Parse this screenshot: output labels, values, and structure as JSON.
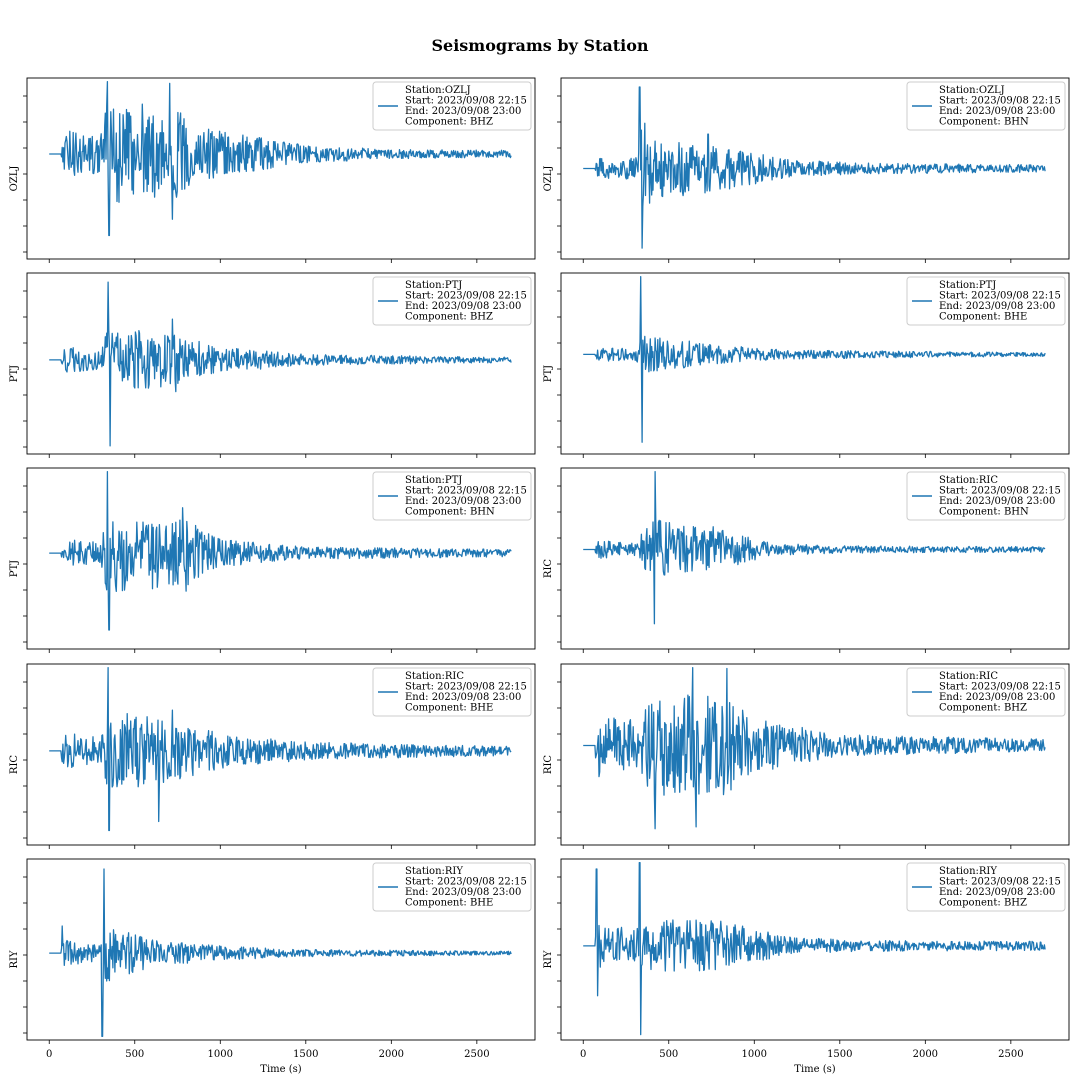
{
  "title": "Seismograms by Station",
  "colors": {
    "trace": "#1f77b4",
    "axes": "#000000",
    "legend_border": "#cccccc"
  },
  "chart_data": {
    "type": "line",
    "title": "Seismograms by Station",
    "xlabel": "Time (s)",
    "xlim": [
      -130,
      2840
    ],
    "xticks": [
      0,
      500,
      1000,
      1500,
      2000,
      2500
    ],
    "grid": false,
    "legend_placement": "upper right",
    "rows": 5,
    "cols": 2,
    "panels": [
      {
        "station": "OZLJ",
        "ylabel": "OZLJ",
        "legend_lines": [
          "Station:OZLJ",
          "Start: 2023/09/08 22:15",
          "End: 2023/09/08 23:00",
          "Component: BHZ"
        ],
        "baseline": 0.42,
        "start_x": 70,
        "end_x": 2700,
        "peaks": [
          {
            "t": 340,
            "amp": 0.88
          },
          {
            "t": 350,
            "amp": -0.9
          },
          {
            "t": 705,
            "amp": 0.78
          },
          {
            "t": 720,
            "amp": -0.72
          },
          {
            "t": 545,
            "amp": 0.55
          }
        ],
        "envelope": [
          [
            0,
            0
          ],
          [
            70,
            0.05
          ],
          [
            90,
            0.3
          ],
          [
            300,
            0.2
          ],
          [
            340,
            0.6
          ],
          [
            500,
            0.45
          ],
          [
            720,
            0.5
          ],
          [
            1000,
            0.25
          ],
          [
            1500,
            0.1
          ],
          [
            2000,
            0.05
          ],
          [
            2700,
            0.04
          ]
        ]
      },
      {
        "station": "OZLJ",
        "ylabel": "OZLJ",
        "legend_lines": [
          "Station:OZLJ",
          "Start: 2023/09/08 22:15",
          "End: 2023/09/08 23:00",
          "Component: BHN"
        ],
        "baseline": 0.5,
        "start_x": 70,
        "end_x": 2700,
        "peaks": [
          {
            "t": 330,
            "amp": 0.9
          },
          {
            "t": 345,
            "amp": -0.88
          },
          {
            "t": 360,
            "amp": 0.5
          },
          {
            "t": 730,
            "amp": 0.38
          }
        ],
        "envelope": [
          [
            0,
            0
          ],
          [
            70,
            0.03
          ],
          [
            90,
            0.12
          ],
          [
            300,
            0.12
          ],
          [
            340,
            0.45
          ],
          [
            500,
            0.32
          ],
          [
            800,
            0.25
          ],
          [
            1200,
            0.1
          ],
          [
            1600,
            0.06
          ],
          [
            2700,
            0.04
          ]
        ]
      },
      {
        "station": "PTJ",
        "ylabel": "PTJ",
        "legend_lines": [
          "Station:PTJ",
          "Start: 2023/09/08 22:15",
          "End: 2023/09/08 23:00",
          "Component: BHZ"
        ],
        "baseline": 0.48,
        "start_x": 70,
        "end_x": 2700,
        "peaks": [
          {
            "t": 345,
            "amp": 0.86
          },
          {
            "t": 355,
            "amp": -0.95
          },
          {
            "t": 720,
            "amp": 0.45
          },
          {
            "t": 740,
            "amp": -0.35
          }
        ],
        "envelope": [
          [
            0,
            0
          ],
          [
            70,
            0.04
          ],
          [
            90,
            0.15
          ],
          [
            300,
            0.1
          ],
          [
            345,
            0.35
          ],
          [
            700,
            0.3
          ],
          [
            1000,
            0.14
          ],
          [
            1500,
            0.06
          ],
          [
            2700,
            0.03
          ]
        ]
      },
      {
        "station": "PTJ",
        "ylabel": "PTJ",
        "legend_lines": [
          "Station:PTJ",
          "Start: 2023/09/08 22:15",
          "End: 2023/09/08 23:00",
          "Component: BHE"
        ],
        "baseline": 0.45,
        "start_x": 70,
        "end_x": 2700,
        "peaks": [
          {
            "t": 335,
            "amp": 0.92
          },
          {
            "t": 345,
            "amp": -0.97
          },
          {
            "t": 360,
            "amp": 0.2
          }
        ],
        "envelope": [
          [
            0,
            0
          ],
          [
            70,
            0.02
          ],
          [
            90,
            0.08
          ],
          [
            300,
            0.06
          ],
          [
            340,
            0.2
          ],
          [
            500,
            0.18
          ],
          [
            800,
            0.1
          ],
          [
            1200,
            0.05
          ],
          [
            2700,
            0.02
          ]
        ]
      },
      {
        "station": "PTJ",
        "ylabel": "PTJ",
        "legend_lines": [
          "Station:PTJ",
          "Start: 2023/09/08 22:15",
          "End: 2023/09/08 23:00",
          "Component: BHN"
        ],
        "baseline": 0.47,
        "start_x": 70,
        "end_x": 2700,
        "peaks": [
          {
            "t": 340,
            "amp": 0.9
          },
          {
            "t": 350,
            "amp": -0.85
          },
          {
            "t": 780,
            "amp": 0.5
          },
          {
            "t": 800,
            "amp": -0.42
          }
        ],
        "envelope": [
          [
            0,
            0
          ],
          [
            70,
            0.05
          ],
          [
            90,
            0.15
          ],
          [
            300,
            0.12
          ],
          [
            340,
            0.45
          ],
          [
            800,
            0.38
          ],
          [
            1000,
            0.15
          ],
          [
            1500,
            0.07
          ],
          [
            2700,
            0.04
          ]
        ]
      },
      {
        "station": "RIC",
        "ylabel": "RIC",
        "legend_lines": [
          "Station:RIC",
          "Start: 2023/09/08 22:15",
          "End: 2023/09/08 23:00",
          "Component: BHN"
        ],
        "baseline": 0.45,
        "start_x": 70,
        "end_x": 2700,
        "peaks": [
          {
            "t": 420,
            "amp": 0.95
          },
          {
            "t": 415,
            "amp": -0.82
          },
          {
            "t": 760,
            "amp": 0.25
          }
        ],
        "envelope": [
          [
            0,
            0
          ],
          [
            70,
            0.04
          ],
          [
            90,
            0.1
          ],
          [
            300,
            0.08
          ],
          [
            420,
            0.35
          ],
          [
            800,
            0.22
          ],
          [
            1100,
            0.07
          ],
          [
            1500,
            0.04
          ],
          [
            2700,
            0.03
          ]
        ]
      },
      {
        "station": "RIC",
        "ylabel": "RIC",
        "legend_lines": [
          "Station:RIC",
          "Start: 2023/09/08 22:15",
          "End: 2023/09/08 23:00",
          "Component: BHE"
        ],
        "baseline": 0.48,
        "start_x": 70,
        "end_x": 2700,
        "peaks": [
          {
            "t": 345,
            "amp": 0.92
          },
          {
            "t": 350,
            "amp": -0.88
          },
          {
            "t": 640,
            "amp": -0.78
          },
          {
            "t": 720,
            "amp": 0.45
          }
        ],
        "envelope": [
          [
            0,
            0
          ],
          [
            70,
            0.08
          ],
          [
            90,
            0.22
          ],
          [
            300,
            0.15
          ],
          [
            345,
            0.45
          ],
          [
            700,
            0.35
          ],
          [
            1000,
            0.2
          ],
          [
            1500,
            0.1
          ],
          [
            2700,
            0.05
          ]
        ]
      },
      {
        "station": "RIC",
        "ylabel": "RIC",
        "legend_lines": [
          "Station:RIC",
          "Start: 2023/09/08 22:15",
          "End: 2023/09/08 23:00",
          "Component: BHZ"
        ],
        "baseline": 0.45,
        "start_x": 70,
        "end_x": 2700,
        "peaks": [
          {
            "t": 640,
            "amp": 0.93
          },
          {
            "t": 660,
            "amp": -0.9
          },
          {
            "t": 840,
            "amp": 0.85
          },
          {
            "t": 420,
            "amp": -0.92
          }
        ],
        "envelope": [
          [
            0,
            0
          ],
          [
            70,
            0.12
          ],
          [
            90,
            0.35
          ],
          [
            300,
            0.28
          ],
          [
            400,
            0.55
          ],
          [
            800,
            0.6
          ],
          [
            1000,
            0.3
          ],
          [
            1500,
            0.12
          ],
          [
            2700,
            0.07
          ]
        ]
      },
      {
        "station": "RIY",
        "ylabel": "RIY",
        "legend_lines": [
          "Station:RIY",
          "Start: 2023/09/08 22:15",
          "End: 2023/09/08 23:00",
          "Component: BHE"
        ],
        "baseline": 0.52,
        "start_x": 70,
        "end_x": 2700,
        "peaks": [
          {
            "t": 320,
            "amp": 0.93
          },
          {
            "t": 310,
            "amp": -0.98
          },
          {
            "t": 75,
            "amp": 0.3
          }
        ],
        "envelope": [
          [
            0,
            0
          ],
          [
            70,
            0.05
          ],
          [
            90,
            0.15
          ],
          [
            300,
            0.08
          ],
          [
            330,
            0.35
          ],
          [
            600,
            0.15
          ],
          [
            1000,
            0.08
          ],
          [
            1500,
            0.04
          ],
          [
            2700,
            0.02
          ]
        ]
      },
      {
        "station": "RIY",
        "ylabel": "RIY",
        "legend_lines": [
          "Station:RIY",
          "Start: 2023/09/08 22:15",
          "End: 2023/09/08 23:00",
          "Component: BHZ"
        ],
        "baseline": 0.48,
        "start_x": 70,
        "end_x": 2700,
        "peaks": [
          {
            "t": 78,
            "amp": 0.85
          },
          {
            "t": 85,
            "amp": -0.55
          },
          {
            "t": 330,
            "amp": 0.95
          },
          {
            "t": 335,
            "amp": -0.98
          }
        ],
        "envelope": [
          [
            0,
            0
          ],
          [
            70,
            0.1
          ],
          [
            90,
            0.25
          ],
          [
            300,
            0.18
          ],
          [
            400,
            0.3
          ],
          [
            800,
            0.28
          ],
          [
            1200,
            0.1
          ],
          [
            1600,
            0.06
          ],
          [
            2700,
            0.05
          ]
        ]
      }
    ]
  }
}
